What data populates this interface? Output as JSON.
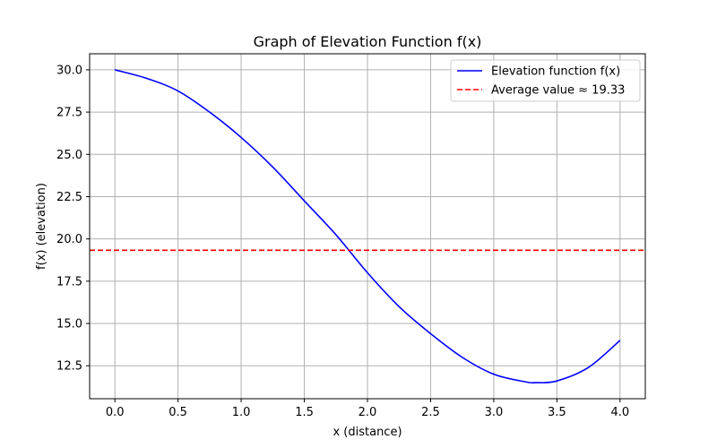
{
  "chart_data": {
    "type": "line",
    "title": "Graph of Elevation Function f(x)",
    "xlabel": "x (distance)",
    "ylabel": "f(x) (elevation)",
    "xlim": [
      -0.2,
      4.2
    ],
    "ylim": [
      10.55,
      30.95
    ],
    "x_ticks": [
      0.0,
      0.5,
      1.0,
      1.5,
      2.0,
      2.5,
      3.0,
      3.5,
      4.0
    ],
    "x_tick_labels": [
      "0.0",
      "0.5",
      "1.0",
      "1.5",
      "2.0",
      "2.5",
      "3.0",
      "3.5",
      "4.0"
    ],
    "y_ticks": [
      12.5,
      15.0,
      17.5,
      20.0,
      22.5,
      25.0,
      27.5,
      30.0
    ],
    "y_tick_labels": [
      "12.5",
      "15.0",
      "17.5",
      "20.0",
      "22.5",
      "25.0",
      "27.5",
      "30.0"
    ],
    "grid": true,
    "legend_position": "top-right",
    "series": [
      {
        "name": "Elevation function f(x)",
        "color": "#0000ff",
        "style": "solid",
        "x": [
          0.0,
          0.25,
          0.5,
          0.75,
          1.0,
          1.25,
          1.5,
          1.75,
          2.0,
          2.25,
          2.5,
          2.75,
          3.0,
          3.25,
          3.333,
          3.5,
          3.75,
          4.0
        ],
        "y": [
          30.0,
          29.5,
          28.75,
          27.5,
          26.0,
          24.25,
          22.25,
          20.25,
          18.0,
          16.0,
          14.4,
          13.0,
          12.0,
          11.55,
          11.5,
          11.6,
          12.4,
          14.0
        ]
      },
      {
        "name": "Average value ≈ 19.33",
        "color": "#ff0000",
        "style": "dashed",
        "constant": 19.33
      }
    ]
  }
}
